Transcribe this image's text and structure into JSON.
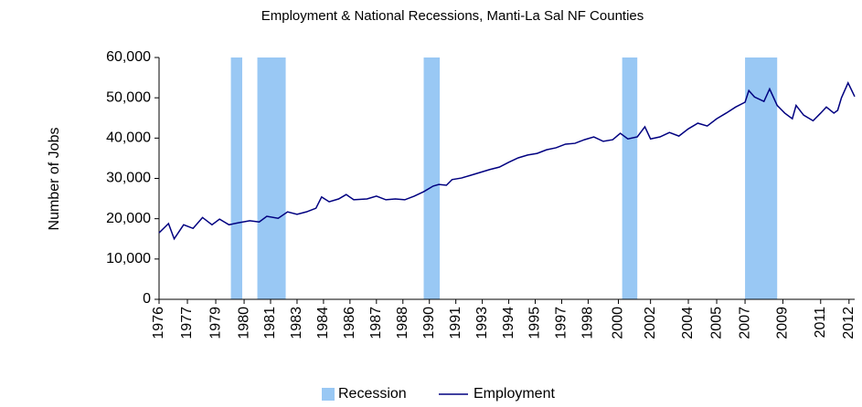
{
  "chart_data": {
    "type": "line",
    "title": "Employment & National Recessions, Manti-La Sal NF Counties",
    "y_label": "Number of Jobs",
    "recessions": {
      "name": "Recession",
      "color": "#99c8f4",
      "ranges": [
        [
          1979.8,
          1980.4
        ],
        [
          1981.2,
          1982.7
        ],
        [
          1990.0,
          1990.85
        ],
        [
          2000.5,
          2001.3
        ],
        [
          2007.0,
          2008.7
        ]
      ]
    },
    "series": [
      {
        "name": "Employment",
        "color": "#000080",
        "x": [
          1976.0,
          1976.5,
          1976.8,
          1977.3,
          1977.8,
          1978.3,
          1978.8,
          1979.2,
          1979.7,
          1980.2,
          1980.8,
          1981.3,
          1981.7,
          1982.3,
          1982.8,
          1983.3,
          1983.8,
          1984.3,
          1984.6,
          1985.0,
          1985.5,
          1985.9,
          1986.3,
          1987.0,
          1987.5,
          1988.0,
          1988.5,
          1989.0,
          1989.5,
          1990.0,
          1990.5,
          1990.8,
          1991.2,
          1991.5,
          1992.0,
          1992.5,
          1993.0,
          1993.5,
          1994.0,
          1994.5,
          1995.0,
          1995.5,
          1996.0,
          1996.5,
          1997.0,
          1997.5,
          1998.0,
          1998.5,
          1999.0,
          1999.5,
          2000.0,
          2000.4,
          2000.8,
          2001.3,
          2001.7,
          2002.0,
          2002.5,
          2003.0,
          2003.5,
          2004.0,
          2004.5,
          2005.0,
          2005.5,
          2006.0,
          2006.5,
          2007.0,
          2007.2,
          2007.5,
          2008.0,
          2008.3,
          2008.7,
          2009.1,
          2009.5,
          2009.7,
          2010.1,
          2010.6,
          2011.0,
          2011.3,
          2011.7,
          2011.9,
          2012.1,
          2012.45,
          2012.8
        ],
        "values": [
          16500,
          18800,
          15000,
          18500,
          17600,
          20300,
          18500,
          19900,
          18500,
          19000,
          19500,
          19200,
          20600,
          20100,
          21700,
          21100,
          21700,
          22600,
          25400,
          24200,
          24900,
          26000,
          24700,
          24900,
          25600,
          24700,
          24900,
          24700,
          25600,
          26700,
          28100,
          28500,
          28300,
          29700,
          30100,
          30800,
          31500,
          32200,
          32800,
          34000,
          35100,
          35800,
          36200,
          37100,
          37600,
          38500,
          38700,
          39600,
          40300,
          39200,
          39600,
          41200,
          39800,
          40300,
          42800,
          39800,
          40300,
          41400,
          40500,
          42300,
          43700,
          43000,
          44800,
          46200,
          47700,
          48900,
          51800,
          50200,
          49100,
          52200,
          48100,
          46200,
          44800,
          48100,
          45700,
          44300,
          46200,
          47700,
          46200,
          46900,
          50000,
          53700,
          50300
        ]
      }
    ],
    "xlim": [
      1976,
      2012.8
    ],
    "xticks": [
      {
        "value": 1976.0,
        "label": "1976"
      },
      {
        "value": 1977.5,
        "label": "1977"
      },
      {
        "value": 1979.0,
        "label": "1979"
      },
      {
        "value": 1980.5,
        "label": "1980"
      },
      {
        "value": 1981.9,
        "label": "1981"
      },
      {
        "value": 1983.3,
        "label": "1983"
      },
      {
        "value": 1984.7,
        "label": "1984"
      },
      {
        "value": 1986.1,
        "label": "1986"
      },
      {
        "value": 1987.5,
        "label": "1987"
      },
      {
        "value": 1988.9,
        "label": "1988"
      },
      {
        "value": 1990.3,
        "label": "1990"
      },
      {
        "value": 1991.7,
        "label": "1991"
      },
      {
        "value": 1993.1,
        "label": "1993"
      },
      {
        "value": 1994.5,
        "label": "1994"
      },
      {
        "value": 1995.9,
        "label": "1995"
      },
      {
        "value": 1997.3,
        "label": "1997"
      },
      {
        "value": 1998.7,
        "label": "1998"
      },
      {
        "value": 2000.3,
        "label": "2000"
      },
      {
        "value": 2002.0,
        "label": "2002"
      },
      {
        "value": 2004.0,
        "label": "2004"
      },
      {
        "value": 2005.5,
        "label": "2005"
      },
      {
        "value": 2007.0,
        "label": "2007"
      },
      {
        "value": 2009.0,
        "label": "2009"
      },
      {
        "value": 2011.0,
        "label": "2011"
      },
      {
        "value": 2012.5,
        "label": "2012"
      }
    ],
    "ylim": [
      0,
      60000
    ],
    "yticks": [
      0,
      {
        "value": 10000,
        "label": "10,000"
      },
      {
        "value": 20000,
        "label": "20,000"
      },
      {
        "value": 30000,
        "label": "30,000"
      },
      {
        "value": 40000,
        "label": "40,000"
      },
      {
        "value": 50000,
        "label": "50,000"
      },
      {
        "value": 60000,
        "label": "60,000"
      }
    ],
    "grid": false,
    "legend": "bottom"
  }
}
